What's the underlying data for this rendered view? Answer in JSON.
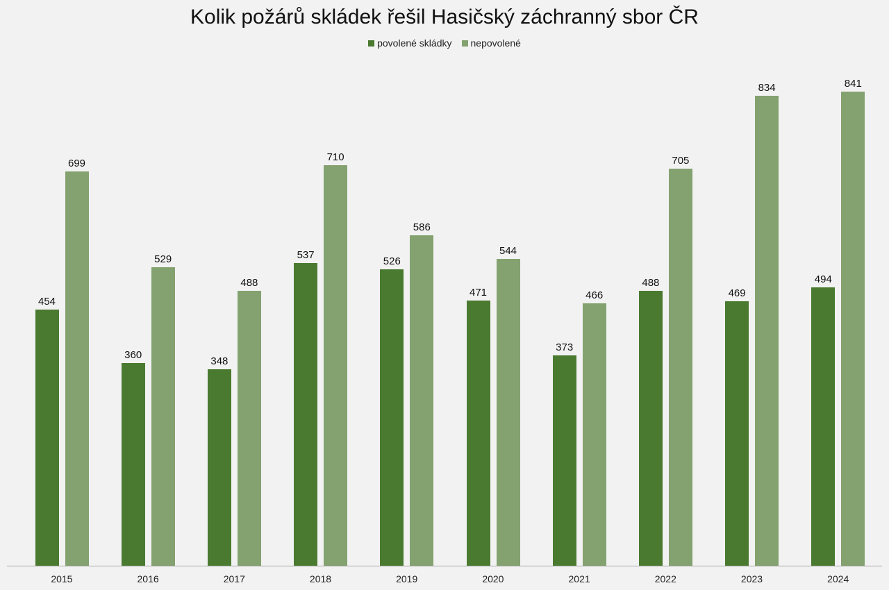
{
  "chart_data": {
    "type": "bar",
    "title": "Kolik požárů skládek řešil Hasičský záchranný sbor ČR",
    "xlabel": "",
    "ylabel": "",
    "ylim": [
      0,
      900
    ],
    "grid": false,
    "legend_position": "top",
    "categories": [
      "2015",
      "2016",
      "2017",
      "2018",
      "2019",
      "2020",
      "2021",
      "2022",
      "2023",
      "2024"
    ],
    "series": [
      {
        "name": "povolené skládky",
        "color": "#4a7a30",
        "values": [
          454,
          360,
          348,
          537,
          526,
          471,
          373,
          488,
          469,
          494
        ]
      },
      {
        "name": "nepovolené",
        "color": "#83a26f",
        "values": [
          699,
          529,
          488,
          710,
          586,
          544,
          466,
          705,
          834,
          841
        ]
      }
    ]
  }
}
